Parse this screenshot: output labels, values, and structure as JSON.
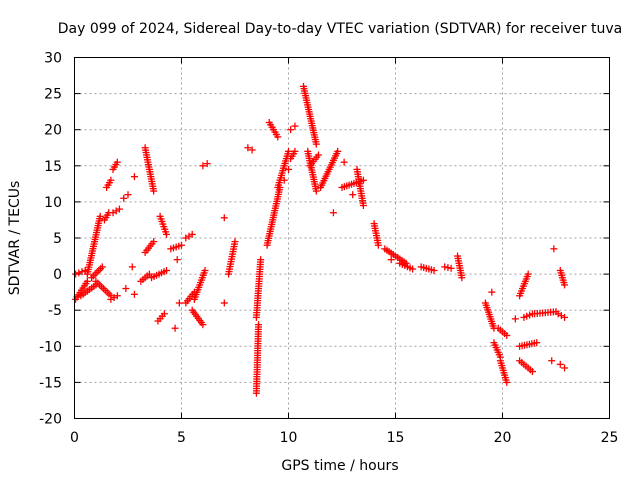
{
  "chart_data": {
    "type": "scatter",
    "title": "Day 099 of 2024, Sidereal Day-to-day VTEC variation (SDTVAR) for receiver tuva",
    "xlabel": "GPS time / hours",
    "ylabel": "SDTVAR / TECUs",
    "xlim": [
      0,
      25
    ],
    "ylim": [
      -20,
      30
    ],
    "xticks": [
      0,
      5,
      10,
      15,
      20,
      25
    ],
    "yticks": [
      -20,
      -15,
      -10,
      -5,
      0,
      5,
      10,
      15,
      20,
      25,
      30
    ],
    "grid": true,
    "marker": "+",
    "color": "#ff0000",
    "series": [
      {
        "name": "SDTVAR",
        "segments": [
          {
            "x": [
              0.05,
              0.6
            ],
            "y": [
              -3.5,
              -1.0
            ]
          },
          {
            "x": [
              0.05,
              0.5
            ],
            "y": [
              0.0,
              0.5
            ]
          },
          {
            "x": [
              0.3,
              1.0
            ],
            "y": [
              -3.0,
              -1.5
            ]
          },
          {
            "x": [
              0.6,
              1.2
            ],
            "y": [
              0.0,
              8.0
            ]
          },
          {
            "x": [
              0.8,
              1.3
            ],
            "y": [
              -0.5,
              1.0
            ]
          },
          {
            "x": [
              1.0,
              1.7
            ],
            "y": [
              -1.0,
              -3.0
            ]
          },
          {
            "x": [
              1.4,
              1.6
            ],
            "y": [
              7.5,
              8.5
            ]
          },
          {
            "x": [
              1.5,
              1.7
            ],
            "y": [
              12.0,
              13.0
            ]
          },
          {
            "x": [
              1.8,
              2.0
            ],
            "y": [
              14.5,
              15.5
            ]
          },
          {
            "x": [
              1.8,
              2.1
            ],
            "y": [
              8.5,
              9.0
            ]
          },
          {
            "x": [
              1.7,
              2.0
            ],
            "y": [
              -3.5,
              -3.0
            ]
          },
          {
            "x": [
              2.3,
              2.5
            ],
            "y": [
              10.5,
              11.0
            ]
          },
          {
            "x": [
              3.3,
              3.7
            ],
            "y": [
              17.5,
              11.5
            ]
          },
          {
            "x": [
              3.3,
              3.7
            ],
            "y": [
              3.0,
              4.5
            ]
          },
          {
            "x": [
              3.1,
              3.5
            ],
            "y": [
              -1.0,
              0.0
            ]
          },
          {
            "x": [
              3.6,
              4.3
            ],
            "y": [
              -0.5,
              0.5
            ]
          },
          {
            "x": [
              4.0,
              4.3
            ],
            "y": [
              8.0,
              5.5
            ]
          },
          {
            "x": [
              3.9,
              4.2
            ],
            "y": [
              -6.5,
              -5.5
            ]
          },
          {
            "x": [
              4.5,
              5.0
            ],
            "y": [
              3.5,
              4.0
            ]
          },
          {
            "x": [
              5.2,
              5.6
            ],
            "y": [
              -4.0,
              -2.5
            ]
          },
          {
            "x": [
              5.5,
              6.0
            ],
            "y": [
              -5.0,
              -7.0
            ]
          },
          {
            "x": [
              5.6,
              6.1
            ],
            "y": [
              -3.5,
              0.5
            ]
          },
          {
            "x": [
              5.2,
              5.5
            ],
            "y": [
              5.0,
              5.5
            ]
          },
          {
            "x": [
              6.0,
              6.2
            ],
            "y": [
              15.0,
              15.3
            ]
          },
          {
            "x": [
              7.2,
              7.5
            ],
            "y": [
              0.0,
              4.5
            ]
          },
          {
            "x": [
              8.1,
              8.3
            ],
            "y": [
              17.5,
              17.2
            ]
          },
          {
            "x": [
              8.5,
              8.6
            ],
            "y": [
              -16.5,
              -7.0
            ]
          },
          {
            "x": [
              8.5,
              8.7
            ],
            "y": [
              -6.0,
              2.0
            ]
          },
          {
            "x": [
              9.0,
              9.6
            ],
            "y": [
              4.0,
              12.0
            ]
          },
          {
            "x": [
              9.1,
              9.5
            ],
            "y": [
              21.0,
              19.0
            ]
          },
          {
            "x": [
              9.5,
              10.0
            ],
            "y": [
              12.0,
              17.0
            ]
          },
          {
            "x": [
              10.1,
              10.3
            ],
            "y": [
              20.0,
              20.5
            ]
          },
          {
            "x": [
              10.1,
              10.3
            ],
            "y": [
              16.0,
              17.0
            ]
          },
          {
            "x": [
              10.7,
              11.3
            ],
            "y": [
              26.0,
              18.0
            ]
          },
          {
            "x": [
              10.9,
              11.3
            ],
            "y": [
              17.0,
              11.5
            ]
          },
          {
            "x": [
              11.0,
              11.4
            ],
            "y": [
              15.0,
              16.5
            ]
          },
          {
            "x": [
              11.5,
              12.3
            ],
            "y": [
              12.0,
              17.0
            ]
          },
          {
            "x": [
              12.5,
              13.5
            ],
            "y": [
              12.0,
              13.0
            ]
          },
          {
            "x": [
              13.2,
              13.5
            ],
            "y": [
              14.5,
              9.5
            ]
          },
          {
            "x": [
              14.0,
              14.2
            ],
            "y": [
              7.0,
              4.0
            ]
          },
          {
            "x": [
              14.5,
              15.5
            ],
            "y": [
              3.5,
              1.5
            ]
          },
          {
            "x": [
              15.2,
              15.8
            ],
            "y": [
              1.5,
              0.7
            ]
          },
          {
            "x": [
              16.2,
              16.8
            ],
            "y": [
              1.0,
              0.5
            ]
          },
          {
            "x": [
              17.3,
              17.6
            ],
            "y": [
              1.0,
              0.8
            ]
          },
          {
            "x": [
              17.9,
              18.1
            ],
            "y": [
              2.5,
              -0.5
            ]
          },
          {
            "x": [
              19.2,
              19.6
            ],
            "y": [
              -4.0,
              -7.5
            ]
          },
          {
            "x": [
              19.6,
              19.9
            ],
            "y": [
              -9.5,
              -11.5
            ]
          },
          {
            "x": [
              19.8,
              20.2
            ],
            "y": [
              -7.5,
              -8.5
            ]
          },
          {
            "x": [
              19.9,
              20.2
            ],
            "y": [
              -12.0,
              -15.0
            ]
          },
          {
            "x": [
              20.8,
              21.2
            ],
            "y": [
              -3.0,
              0.0
            ]
          },
          {
            "x": [
              20.8,
              21.4
            ],
            "y": [
              -12.0,
              -13.5
            ]
          },
          {
            "x": [
              20.8,
              21.6
            ],
            "y": [
              -10.0,
              -9.5
            ]
          },
          {
            "x": [
              21.0,
              21.4
            ],
            "y": [
              -6.0,
              -5.5
            ]
          },
          {
            "x": [
              21.5,
              22.5
            ],
            "y": [
              -5.5,
              -5.2
            ]
          },
          {
            "x": [
              22.6,
              22.9
            ],
            "y": [
              -5.5,
              -6.0
            ]
          },
          {
            "x": [
              22.7,
              22.9
            ],
            "y": [
              -12.5,
              -13.0
            ]
          },
          {
            "x": [
              22.7,
              22.9
            ],
            "y": [
              0.5,
              -1.5
            ]
          }
        ],
        "isolated": [
          {
            "x": 2.8,
            "y": 13.5
          },
          {
            "x": 2.7,
            "y": 1.0
          },
          {
            "x": 2.4,
            "y": -2.0
          },
          {
            "x": 2.8,
            "y": -2.8
          },
          {
            "x": 4.7,
            "y": -7.5
          },
          {
            "x": 4.8,
            "y": 2.0
          },
          {
            "x": 4.9,
            "y": -4.0
          },
          {
            "x": 7.0,
            "y": 7.8
          },
          {
            "x": 7.0,
            "y": -4.0
          },
          {
            "x": 9.8,
            "y": 13.0
          },
          {
            "x": 10.0,
            "y": 14.5
          },
          {
            "x": 12.1,
            "y": 8.5
          },
          {
            "x": 12.6,
            "y": 15.5
          },
          {
            "x": 13.0,
            "y": 11.0
          },
          {
            "x": 14.8,
            "y": 2.0
          },
          {
            "x": 19.5,
            "y": -2.5
          },
          {
            "x": 20.6,
            "y": -6.2
          },
          {
            "x": 22.4,
            "y": 3.5
          },
          {
            "x": 22.3,
            "y": -12.0
          }
        ]
      }
    ]
  }
}
